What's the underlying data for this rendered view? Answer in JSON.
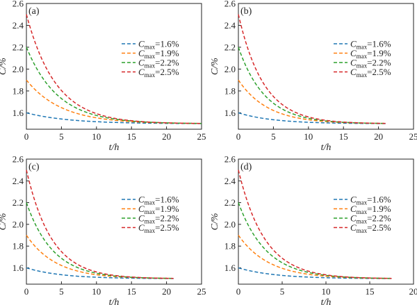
{
  "chart_data": [
    {
      "type": "line",
      "panel_label": "(a)",
      "xlabel": "t/h",
      "ylabel": "C/%",
      "xlim": [
        0,
        25
      ],
      "ylim": [
        1.45,
        2.6
      ],
      "xticks": [
        0,
        5,
        10,
        15,
        20,
        25
      ],
      "yticks": [
        1.6,
        1.8,
        2.0,
        2.2,
        2.4,
        2.6
      ],
      "legend_position": "center-right",
      "line_style": "dashed",
      "x_end": 25,
      "asymptote": 1.5,
      "series": [
        {
          "name": "Cmax=1.6%",
          "legend_sub": "max",
          "legend_value": "=1.6%",
          "color": "#1f77b4",
          "start": 1.6,
          "tau": 6
        },
        {
          "name": "Cmax=1.9%",
          "legend_sub": "max",
          "legend_value": "=1.9%",
          "color": "#ff7f0e",
          "start": 1.9,
          "tau": 5
        },
        {
          "name": "Cmax=2.2%",
          "legend_sub": "max",
          "legend_value": "=2.2%",
          "color": "#2ca02c",
          "start": 2.2,
          "tau": 4.5
        },
        {
          "name": "Cmax=2.5%",
          "legend_sub": "max",
          "legend_value": "=2.5%",
          "color": "#d62728",
          "start": 2.5,
          "tau": 4.2
        }
      ]
    },
    {
      "type": "line",
      "panel_label": "(b)",
      "xlabel": "t/h",
      "ylabel": "C/%",
      "xlim": [
        0,
        25
      ],
      "ylim": [
        1.45,
        2.6
      ],
      "xticks": [
        0,
        5,
        10,
        15,
        20,
        25
      ],
      "yticks": [
        1.6,
        1.8,
        2.0,
        2.2,
        2.4,
        2.6
      ],
      "legend_position": "center-right",
      "line_style": "dashed",
      "x_end": 21,
      "asymptote": 1.5,
      "series": [
        {
          "name": "Cmax=1.6%",
          "legend_sub": "max",
          "legend_value": "=1.6%",
          "color": "#1f77b4",
          "start": 1.6,
          "tau": 5
        },
        {
          "name": "Cmax=1.9%",
          "legend_sub": "max",
          "legend_value": "=1.9%",
          "color": "#ff7f0e",
          "start": 1.9,
          "tau": 4.2
        },
        {
          "name": "Cmax=2.2%",
          "legend_sub": "max",
          "legend_value": "=2.2%",
          "color": "#2ca02c",
          "start": 2.2,
          "tau": 3.8
        },
        {
          "name": "Cmax=2.5%",
          "legend_sub": "max",
          "legend_value": "=2.5%",
          "color": "#d62728",
          "start": 2.5,
          "tau": 3.6
        }
      ]
    },
    {
      "type": "line",
      "panel_label": "(c)",
      "xlabel": "t/h",
      "ylabel": "C/%",
      "xlim": [
        0,
        25
      ],
      "ylim": [
        1.45,
        2.6
      ],
      "xticks": [
        0,
        5,
        10,
        15,
        20,
        25
      ],
      "yticks": [
        1.6,
        1.8,
        2.0,
        2.2,
        2.4,
        2.6
      ],
      "legend_position": "center-right",
      "line_style": "dashed",
      "x_end": 21,
      "asymptote": 1.5,
      "series": [
        {
          "name": "Cmax=1.6%",
          "legend_sub": "max",
          "legend_value": "=1.6%",
          "color": "#1f77b4",
          "start": 1.6,
          "tau": 5
        },
        {
          "name": "Cmax=1.9%",
          "legend_sub": "max",
          "legend_value": "=1.9%",
          "color": "#ff7f0e",
          "start": 1.9,
          "tau": 4.2
        },
        {
          "name": "Cmax=2.2%",
          "legend_sub": "max",
          "legend_value": "=2.2%",
          "color": "#2ca02c",
          "start": 2.2,
          "tau": 3.8
        },
        {
          "name": "Cmax=2.5%",
          "legend_sub": "max",
          "legend_value": "=2.5%",
          "color": "#d62728",
          "start": 2.5,
          "tau": 3.6
        }
      ]
    },
    {
      "type": "line",
      "panel_label": "(d)",
      "xlabel": "t/h",
      "ylabel": "C/%",
      "xlim": [
        0,
        20
      ],
      "ylim": [
        1.45,
        2.6
      ],
      "xticks": [
        0,
        5,
        10,
        15,
        20
      ],
      "yticks": [
        1.6,
        1.8,
        2.0,
        2.2,
        2.4,
        2.6
      ],
      "legend_position": "center-right",
      "line_style": "dashed",
      "x_end": 17.5,
      "asymptote": 1.5,
      "series": [
        {
          "name": "Cmax=1.6%",
          "legend_sub": "max",
          "legend_value": "=1.6%",
          "color": "#1f77b4",
          "start": 1.6,
          "tau": 4.2
        },
        {
          "name": "Cmax=1.9%",
          "legend_sub": "max",
          "legend_value": "=1.9%",
          "color": "#ff7f0e",
          "start": 1.9,
          "tau": 3.5
        },
        {
          "name": "Cmax=2.2%",
          "legend_sub": "max",
          "legend_value": "=2.2%",
          "color": "#2ca02c",
          "start": 2.2,
          "tau": 3.2
        },
        {
          "name": "Cmax=2.5%",
          "legend_sub": "max",
          "legend_value": "=2.5%",
          "color": "#d62728",
          "start": 2.5,
          "tau": 3.0
        }
      ]
    }
  ]
}
